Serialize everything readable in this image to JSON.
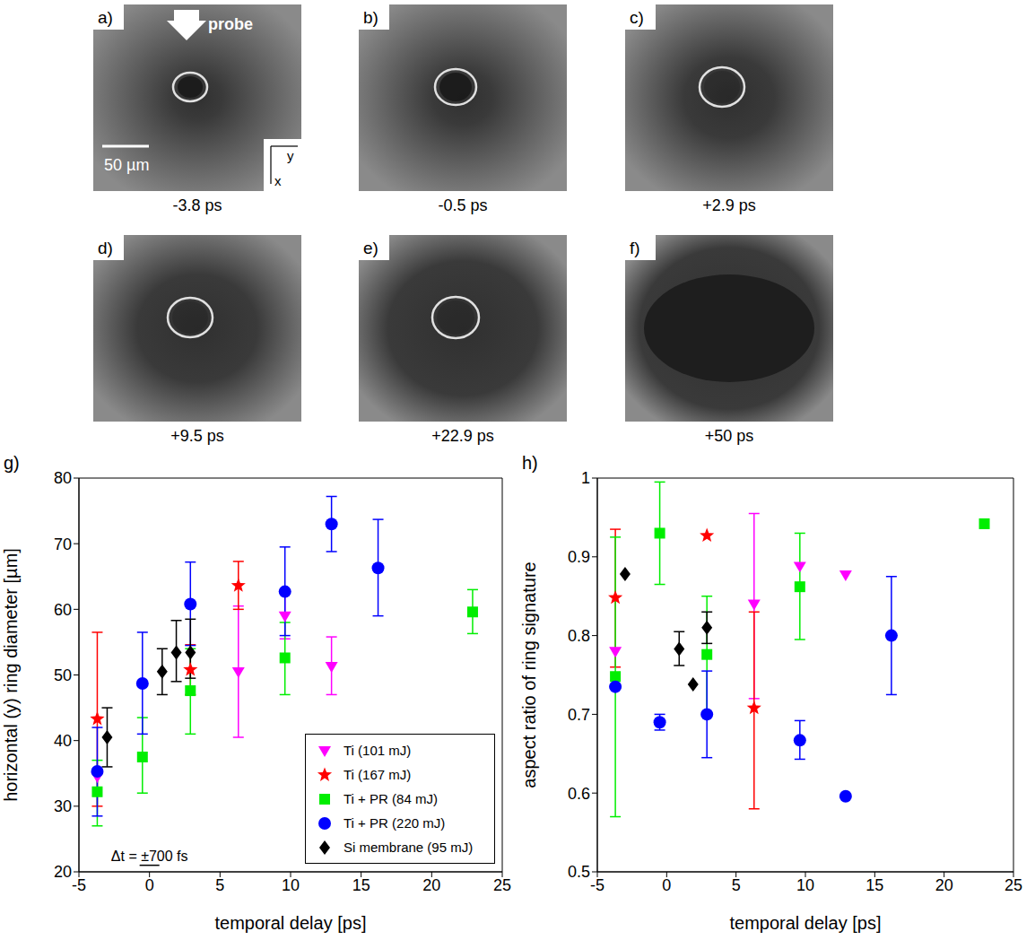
{
  "images": {
    "probe_label": "probe",
    "scale_bar": "50 µm",
    "axis_labels": {
      "horizontal": "y",
      "vertical": "x"
    },
    "panels": [
      {
        "letter": "a)",
        "time": "-3.8 ps"
      },
      {
        "letter": "b)",
        "time": "-0.5 ps"
      },
      {
        "letter": "c)",
        "time": "+2.9 ps"
      },
      {
        "letter": "d)",
        "time": "+9.5 ps"
      },
      {
        "letter": "e)",
        "time": "+22.9 ps"
      },
      {
        "letter": "f)",
        "time": "+50 ps"
      }
    ]
  },
  "chart_data": [
    {
      "panel": "g)",
      "type": "scatter",
      "xlabel": "temporal delay [ps]",
      "ylabel": "horizontal (y) ring diameter [µm]",
      "xlim": [
        -5,
        25
      ],
      "ylim": [
        20,
        80
      ],
      "xticks": [
        -5,
        0,
        5,
        10,
        15,
        20,
        25
      ],
      "yticks": [
        20,
        30,
        40,
        50,
        60,
        70,
        80
      ],
      "legend": "lower right",
      "annotations": [
        {
          "text": "Δt = ±700 fs",
          "x": [
            -0.7,
            0.7
          ],
          "y": 21
        }
      ],
      "series": [
        {
          "name": "Ti (101 mJ)",
          "color": "#ff00ff",
          "marker": "triangle-down",
          "x": [
            -3.7,
            6.3,
            9.6,
            12.9
          ],
          "values": [
            34.5,
            50.5,
            59,
            51.3
          ],
          "errors": [
            null,
            [
              10,
              10
            ],
            [
              3.5,
              3.5
            ],
            [
              4.3,
              4.5
            ]
          ]
        },
        {
          "name": "Ti (167 mJ)",
          "color": "#ff0000",
          "marker": "star",
          "x": [
            -3.7,
            2.9,
            6.3
          ],
          "values": [
            43.3,
            50.8,
            63.6
          ],
          "errors": [
            [
              13.3,
              13.2
            ],
            [
              3.8,
              3.8
            ],
            [
              3.6,
              3.7
            ]
          ]
        },
        {
          "name": "Ti + PR (84 mJ)",
          "color": "#00ee00",
          "marker": "square",
          "x": [
            -3.7,
            -0.5,
            2.9,
            9.6,
            22.9
          ],
          "values": [
            32.2,
            37.5,
            47.6,
            52.6,
            59.6
          ],
          "errors": [
            [
              5.2,
              4.8
            ],
            [
              5.5,
              6
            ],
            [
              6.6,
              6.4
            ],
            [
              5.6,
              5.4
            ],
            [
              3.3,
              3.4
            ]
          ]
        },
        {
          "name": "Ti + PR (220 mJ)",
          "color": "#0000ff",
          "marker": "circle",
          "x": [
            -3.7,
            -0.5,
            2.9,
            9.6,
            12.9,
            16.2
          ],
          "values": [
            35.3,
            48.7,
            60.8,
            62.7,
            73,
            66.3
          ],
          "errors": [
            [
              6.8,
              6.7
            ],
            [
              7.7,
              7.8
            ],
            [
              6.3,
              6.4
            ],
            [
              6.7,
              6.8
            ],
            [
              4.2,
              4.2
            ],
            [
              7.3,
              7.4
            ]
          ]
        },
        {
          "name": "Si membrane (95 mJ)",
          "color": "#000000",
          "marker": "diamond",
          "x": [
            -3.0,
            0.9,
            1.9,
            2.9
          ],
          "values": [
            40.5,
            50.5,
            53.4,
            53.4
          ],
          "errors": [
            [
              4.5,
              4.5
            ],
            [
              3.5,
              3.5
            ],
            [
              4.4,
              4.9
            ],
            [
              3.9,
              5.1
            ]
          ]
        }
      ]
    },
    {
      "panel": "h)",
      "type": "scatter",
      "xlabel": "temporal delay [ps]",
      "ylabel": "aspect ratio of ring signature",
      "xlim": [
        -5,
        25
      ],
      "ylim": [
        0.5,
        1
      ],
      "xticks": [
        -5,
        0,
        5,
        10,
        15,
        20,
        25
      ],
      "yticks": [
        0.5,
        0.6,
        0.7,
        0.8,
        0.9,
        1
      ],
      "series": [
        {
          "color": "#ff00ff",
          "marker": "triangle-down",
          "x": [
            -3.7,
            6.3,
            9.6,
            12.9
          ],
          "values": [
            0.78,
            0.84,
            0.888,
            0.877
          ],
          "errors": [
            null,
            [
              0.12,
              0.115
            ],
            null,
            null
          ]
        },
        {
          "color": "#ff0000",
          "marker": "star",
          "x": [
            -3.7,
            2.9,
            6.3
          ],
          "values": [
            0.848,
            0.927,
            0.708
          ],
          "errors": [
            [
              0.088,
              0.087
            ],
            null,
            [
              0.128,
              0.122
            ]
          ]
        },
        {
          "color": "#00ee00",
          "marker": "square",
          "x": [
            -3.7,
            -0.5,
            2.9,
            9.6,
            22.9
          ],
          "values": [
            0.748,
            0.93,
            0.776,
            0.862,
            0.942
          ],
          "errors": [
            [
              0.178,
              0.177
            ],
            [
              0.065,
              0.065
            ],
            [
              0.076,
              0.074
            ],
            [
              0.067,
              0.068
            ],
            null
          ]
        },
        {
          "color": "#0000ff",
          "marker": "circle",
          "x": [
            -3.7,
            -0.5,
            2.9,
            9.6,
            12.9,
            16.2
          ],
          "values": [
            0.735,
            0.69,
            0.7,
            0.667,
            0.596,
            0.8
          ],
          "errors": [
            null,
            [
              0.01,
              0.01
            ],
            [
              0.055,
              0.055
            ],
            [
              0.024,
              0.025
            ],
            null,
            [
              0.075,
              0.075
            ]
          ]
        },
        {
          "color": "#000000",
          "marker": "diamond",
          "x": [
            -3.0,
            0.9,
            1.9,
            2.9
          ],
          "values": [
            0.878,
            0.783,
            0.738,
            0.81
          ],
          "errors": [
            null,
            [
              0.021,
              0.022
            ],
            null,
            [
              0.02,
              0.02
            ]
          ]
        }
      ]
    }
  ]
}
